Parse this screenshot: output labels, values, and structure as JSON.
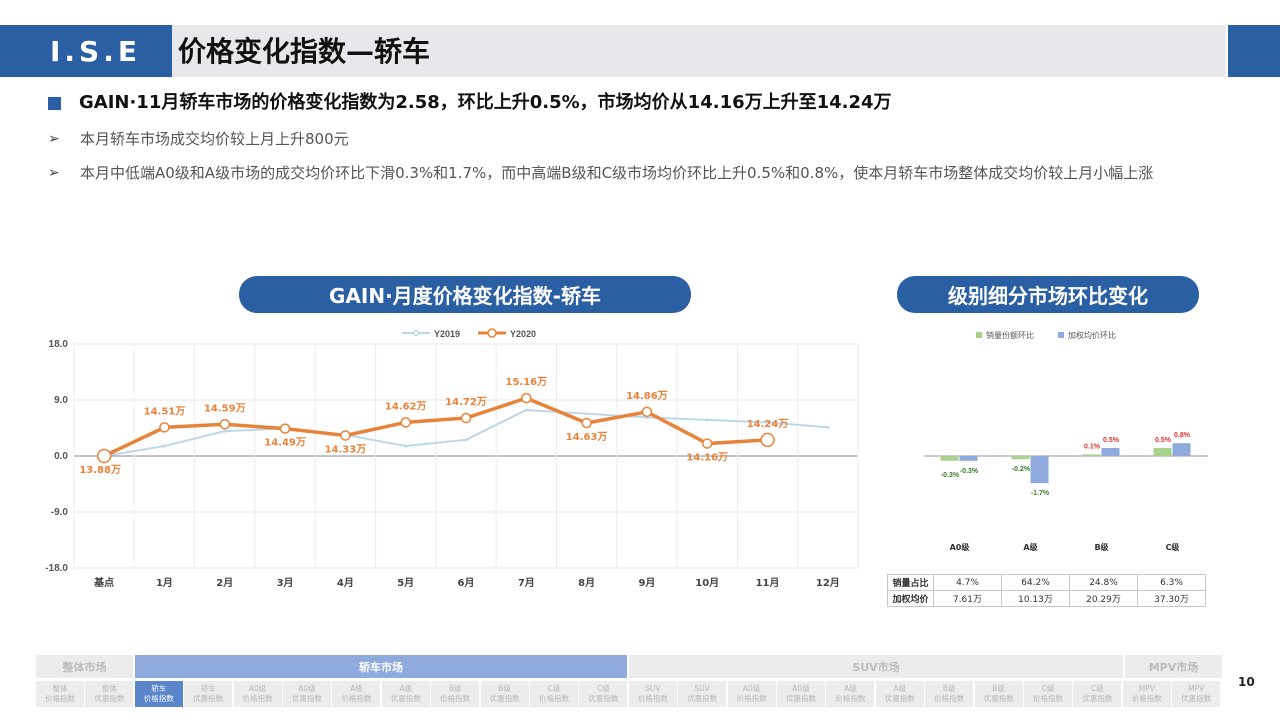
{
  "header": {
    "logo": "I.S.E",
    "title": "价格变化指数—轿车"
  },
  "main_bullet": "GAIN·11月轿车市场的价格变化指数为2.58，环比上升0.5%，市场均价从14.16万上升至14.24万",
  "sub_bullets": [
    "本月轿车市场成交均价较上月上升800元",
    "本月中低端A0级和A级市场的成交均价环比下滑0.3%和1.7%，而中高端B级和C级市场均价环比上升0.5%和0.8%，使本月轿车市场整体成交均价较上月小幅上涨"
  ],
  "left_pill": "GAIN·月度价格变化指数-轿车",
  "right_pill": "级别细分市场环比变化",
  "colors": {
    "brand": "#2a5fa3",
    "y2019": "#bcd7ea",
    "y2020": "#e8833a",
    "green": "#a9d18e",
    "blue": "#8faadc",
    "red": "#e03030"
  },
  "chart_data": [
    {
      "type": "line",
      "categories": [
        "基点",
        "1月",
        "2月",
        "3月",
        "4月",
        "5月",
        "6月",
        "7月",
        "8月",
        "9月",
        "10月",
        "11月",
        "12月"
      ],
      "ylim": [
        -18,
        18
      ],
      "yticks": [
        "18.0",
        "9.0",
        "0.0",
        "-9.0",
        "-18.0"
      ],
      "series": [
        {
          "name": "Y2019",
          "values": [
            0,
            1.6,
            4.0,
            4.4,
            3.4,
            1.6,
            2.6,
            7.4,
            6.8,
            6.2,
            5.8,
            5.4,
            4.6
          ]
        },
        {
          "name": "Y2020",
          "values": [
            0,
            4.6,
            5.1,
            4.4,
            3.3,
            5.4,
            6.1,
            9.3,
            5.3,
            7.1,
            2.0,
            2.6,
            null
          ],
          "labels": [
            "13.88万",
            "14.51万",
            "14.59万",
            "14.49万",
            "14.33万",
            "14.62万",
            "14.72万",
            "15.16万",
            "14.63万",
            "14.86万",
            "14.16万",
            "14.24万",
            null
          ]
        }
      ]
    },
    {
      "type": "bar",
      "categories": [
        "A0级",
        "A级",
        "B级",
        "C级"
      ],
      "series": [
        {
          "name": "销量份额环比",
          "values": [
            -0.3,
            -0.2,
            0.1,
            0.5
          ],
          "labels": [
            "-0.3%",
            "-0.2%",
            "0.1%",
            "0.5%"
          ]
        },
        {
          "name": "加权均价环比",
          "values": [
            -0.3,
            -1.7,
            0.5,
            0.8
          ],
          "labels": [
            "-0.3%",
            "-1.7%",
            "0.5%",
            "0.8%"
          ]
        }
      ]
    }
  ],
  "seg_table": {
    "rows": [
      {
        "header": "销量占比",
        "values": [
          "4.7%",
          "64.2%",
          "24.8%",
          "6.3%"
        ]
      },
      {
        "header": "加权均价",
        "values": [
          "7.61万",
          "10.13万",
          "20.29万",
          "37.30万"
        ]
      }
    ]
  },
  "nav": {
    "groups": [
      {
        "label": "整体市场",
        "active": false
      },
      {
        "label": "轿车市场",
        "active": true
      },
      {
        "label": "SUV市场",
        "active": false
      },
      {
        "label": "MPV市场",
        "active": false
      }
    ],
    "items": [
      [
        "整体",
        "价格指数"
      ],
      [
        "整体",
        "优惠指数"
      ],
      [
        "轿车",
        "价格指数"
      ],
      [
        "轿车",
        "优惠指数"
      ],
      [
        "A0级",
        "价格指数"
      ],
      [
        "A0级",
        "优惠指数"
      ],
      [
        "A级",
        "价格指数"
      ],
      [
        "A级",
        "优惠指数"
      ],
      [
        "B级",
        "价格指数"
      ],
      [
        "B级",
        "优惠指数"
      ],
      [
        "C级",
        "价格指数"
      ],
      [
        "C级",
        "优惠指数"
      ],
      [
        "SUV",
        "价格指数"
      ],
      [
        "SUV",
        "优惠指数"
      ],
      [
        "A0级",
        "价格指数"
      ],
      [
        "A0级",
        "优惠指数"
      ],
      [
        "A级",
        "价格指数"
      ],
      [
        "A级",
        "优惠指数"
      ],
      [
        "B级",
        "价格指数"
      ],
      [
        "B级",
        "优惠指数"
      ],
      [
        "C级",
        "价格指数"
      ],
      [
        "C级",
        "优惠指数"
      ],
      [
        "MPV",
        "价格指数"
      ],
      [
        "MPV",
        "优惠指数"
      ]
    ],
    "active_item": 2
  },
  "page_number": "10"
}
